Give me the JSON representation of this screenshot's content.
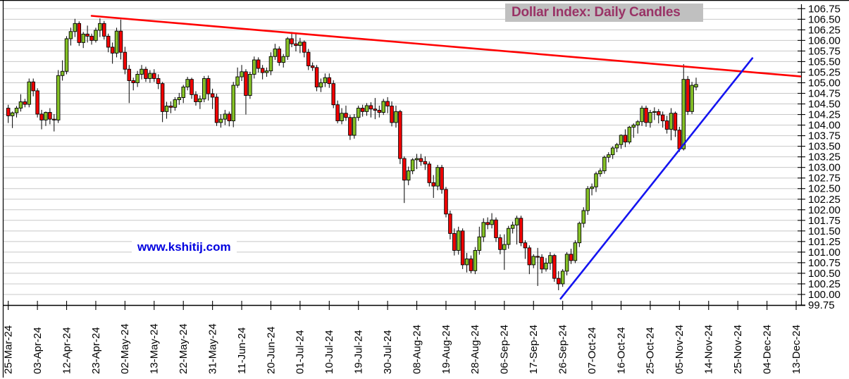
{
  "title": {
    "text": "Dollar Index: Daily Candles",
    "text_color": "#993366",
    "bg_color": "#C0C0C0"
  },
  "watermark": {
    "text": "www.kshitij.com",
    "color": "#0000E0"
  },
  "chart_data": {
    "type": "candlestick",
    "title": "Dollar Index: Daily Candles",
    "grid": true,
    "y_axis": {
      "side": "right",
      "min": 99.75,
      "max": 106.75,
      "step": 0.25
    },
    "y_tick_labels": [
      "106.75",
      "106.50",
      "106.25",
      "106.00",
      "105.75",
      "105.50",
      "105.25",
      "105.00",
      "104.75",
      "104.50",
      "104.25",
      "104.00",
      "103.75",
      "103.50",
      "103.25",
      "103.00",
      "102.75",
      "102.50",
      "102.25",
      "102.00",
      "101.75",
      "101.50",
      "101.25",
      "101.00",
      "100.75",
      "100.50",
      "100.25",
      "100.00",
      "99.75"
    ],
    "x_tick_labels": [
      "25-Mar-24",
      "03-Apr-24",
      "12-Apr-24",
      "23-Apr-24",
      "02-May-24",
      "13-May-24",
      "22-May-24",
      "31-May-24",
      "11-Jun-24",
      "20-Jun-24",
      "01-Jul-24",
      "10-Jul-24",
      "19-Jul-24",
      "30-Jul-24",
      "08-Aug-24",
      "19-Aug-24",
      "28-Aug-24",
      "06-Sep-24",
      "17-Sep-24",
      "26-Sep-24",
      "07-Oct-24",
      "16-Oct-24",
      "25-Oct-24",
      "05-Nov-24",
      "14-Nov-24",
      "25-Nov-24",
      "04-Dec-24",
      "13-Dec-24"
    ],
    "x_ticks_every_n_candles": 7,
    "colors": {
      "up": "#85C226",
      "down": "#F40000",
      "wick": "#000000",
      "grid": "#C8C8C8",
      "axis": "#000000",
      "trend_red": "#FF0000",
      "trend_blue": "#1414F0"
    },
    "columns": [
      "date",
      "open",
      "high",
      "low",
      "close"
    ],
    "candles": [
      [
        "25-Mar-24",
        104.4,
        104.48,
        104.05,
        104.22
      ],
      [
        "26-Mar-24",
        104.22,
        104.32,
        103.93,
        104.29
      ],
      [
        "27-Mar-24",
        104.29,
        104.45,
        104.18,
        104.4
      ],
      [
        "28-Mar-24",
        104.4,
        104.73,
        104.32,
        104.55
      ],
      [
        "29-Mar-24",
        104.55,
        104.62,
        104.42,
        104.49
      ],
      [
        "01-Apr-24",
        104.49,
        105.1,
        104.42,
        105.02
      ],
      [
        "02-Apr-24",
        105.02,
        105.1,
        104.68,
        104.81
      ],
      [
        "03-Apr-24",
        104.81,
        104.87,
        104.18,
        104.26
      ],
      [
        "04-Apr-24",
        104.26,
        104.36,
        103.9,
        104.12
      ],
      [
        "05-Apr-24",
        104.12,
        104.32,
        103.98,
        104.3
      ],
      [
        "08-Apr-24",
        104.3,
        104.4,
        104.02,
        104.14
      ],
      [
        "09-Apr-24",
        104.14,
        104.26,
        103.85,
        104.12
      ],
      [
        "10-Apr-24",
        104.12,
        105.3,
        104.05,
        105.17
      ],
      [
        "11-Apr-24",
        105.17,
        105.53,
        105.05,
        105.27
      ],
      [
        "12-Apr-24",
        105.27,
        106.1,
        105.2,
        106.04
      ],
      [
        "15-Apr-24",
        106.04,
        106.3,
        105.88,
        106.21
      ],
      [
        "16-Apr-24",
        106.21,
        106.51,
        106.08,
        106.4
      ],
      [
        "17-Apr-24",
        106.4,
        106.45,
        105.87,
        105.95
      ],
      [
        "18-Apr-24",
        105.95,
        106.2,
        105.82,
        106.15
      ],
      [
        "19-Apr-24",
        106.15,
        106.35,
        105.95,
        106.1
      ],
      [
        "22-Apr-24",
        106.1,
        106.16,
        105.9,
        106.0
      ],
      [
        "23-Apr-24",
        106.0,
        106.3,
        105.95,
        106.24
      ],
      [
        "24-Apr-24",
        106.24,
        106.52,
        106.08,
        106.4
      ],
      [
        "25-Apr-24",
        106.4,
        106.46,
        106.02,
        106.1
      ],
      [
        "26-Apr-24",
        106.1,
        106.16,
        105.72,
        105.84
      ],
      [
        "29-Apr-24",
        105.84,
        105.95,
        105.45,
        105.7
      ],
      [
        "30-Apr-24",
        105.7,
        106.3,
        105.6,
        106.22
      ],
      [
        "01-May-24",
        106.22,
        106.49,
        105.55,
        105.72
      ],
      [
        "02-May-24",
        105.72,
        105.85,
        105.2,
        105.32
      ],
      [
        "03-May-24",
        105.32,
        105.42,
        104.52,
        105.05
      ],
      [
        "06-May-24",
        105.05,
        105.12,
        104.82,
        105.0
      ],
      [
        "07-May-24",
        105.0,
        105.28,
        104.9,
        105.2
      ],
      [
        "08-May-24",
        105.2,
        105.42,
        105.08,
        105.32
      ],
      [
        "09-May-24",
        105.32,
        105.38,
        105.02,
        105.1
      ],
      [
        "10-May-24",
        105.1,
        105.3,
        105.0,
        105.22
      ],
      [
        "13-May-24",
        105.22,
        105.32,
        105.02,
        105.1
      ],
      [
        "14-May-24",
        105.1,
        105.2,
        104.85,
        104.98
      ],
      [
        "15-May-24",
        104.98,
        105.02,
        104.07,
        104.32
      ],
      [
        "16-May-24",
        104.32,
        104.55,
        104.15,
        104.45
      ],
      [
        "17-May-24",
        104.45,
        104.56,
        104.28,
        104.42
      ],
      [
        "20-May-24",
        104.42,
        104.66,
        104.34,
        104.6
      ],
      [
        "21-May-24",
        104.6,
        104.76,
        104.48,
        104.65
      ],
      [
        "22-May-24",
        104.65,
        104.95,
        104.52,
        104.9
      ],
      [
        "23-May-24",
        104.9,
        105.14,
        104.82,
        105.08
      ],
      [
        "24-May-24",
        105.08,
        105.12,
        104.62,
        104.72
      ],
      [
        "27-May-24",
        104.72,
        104.8,
        104.46,
        104.55
      ],
      [
        "28-May-24",
        104.55,
        104.7,
        104.38,
        104.62
      ],
      [
        "29-May-24",
        104.62,
        105.16,
        104.54,
        105.1
      ],
      [
        "30-May-24",
        105.1,
        105.17,
        104.58,
        104.74
      ],
      [
        "31-May-24",
        104.74,
        104.86,
        104.38,
        104.66
      ],
      [
        "03-Jun-24",
        104.66,
        104.74,
        103.98,
        104.06
      ],
      [
        "04-Jun-24",
        104.06,
        104.26,
        103.94,
        104.14
      ],
      [
        "05-Jun-24",
        104.14,
        104.36,
        104.0,
        104.26
      ],
      [
        "06-Jun-24",
        104.26,
        104.32,
        103.97,
        104.1
      ],
      [
        "07-Jun-24",
        104.1,
        105.02,
        103.95,
        104.94
      ],
      [
        "10-Jun-24",
        104.94,
        105.36,
        104.88,
        105.14
      ],
      [
        "11-Jun-24",
        105.14,
        105.42,
        105.04,
        105.26
      ],
      [
        "12-Jun-24",
        105.26,
        105.32,
        104.25,
        104.7
      ],
      [
        "13-Jun-24",
        104.7,
        105.26,
        104.62,
        105.2
      ],
      [
        "14-Jun-24",
        105.2,
        105.62,
        105.1,
        105.54
      ],
      [
        "17-Jun-24",
        105.54,
        105.6,
        105.24,
        105.34
      ],
      [
        "18-Jun-24",
        105.34,
        105.42,
        105.08,
        105.24
      ],
      [
        "19-Jun-24",
        105.24,
        105.36,
        105.14,
        105.28
      ],
      [
        "20-Jun-24",
        105.28,
        105.72,
        105.18,
        105.62
      ],
      [
        "21-Jun-24",
        105.62,
        105.92,
        105.54,
        105.8
      ],
      [
        "24-Jun-24",
        105.8,
        105.86,
        105.4,
        105.48
      ],
      [
        "25-Jun-24",
        105.48,
        105.68,
        105.36,
        105.62
      ],
      [
        "26-Jun-24",
        105.62,
        106.08,
        105.54,
        106.04
      ],
      [
        "27-Jun-24",
        106.04,
        106.2,
        105.84,
        105.92
      ],
      [
        "28-Jun-24",
        105.92,
        106.18,
        105.74,
        105.88
      ],
      [
        "01-Jul-24",
        105.88,
        106.06,
        105.7,
        105.96
      ],
      [
        "02-Jul-24",
        105.96,
        106.0,
        105.6,
        105.72
      ],
      [
        "03-Jul-24",
        105.72,
        105.8,
        105.3,
        105.4
      ],
      [
        "04-Jul-24",
        105.4,
        105.48,
        105.28,
        105.36
      ],
      [
        "05-Jul-24",
        105.36,
        105.42,
        104.8,
        104.9
      ],
      [
        "08-Jul-24",
        104.9,
        105.1,
        104.78,
        105.0
      ],
      [
        "09-Jul-24",
        105.0,
        105.22,
        104.9,
        105.12
      ],
      [
        "10-Jul-24",
        105.12,
        105.22,
        104.88,
        104.98
      ],
      [
        "11-Jul-24",
        104.98,
        105.06,
        104.4,
        104.48
      ],
      [
        "12-Jul-24",
        104.48,
        104.58,
        104.04,
        104.1
      ],
      [
        "15-Jul-24",
        104.1,
        104.4,
        104.02,
        104.28
      ],
      [
        "16-Jul-24",
        104.28,
        104.46,
        104.1,
        104.18
      ],
      [
        "17-Jul-24",
        104.18,
        104.24,
        103.65,
        103.76
      ],
      [
        "18-Jul-24",
        103.76,
        104.26,
        103.68,
        104.18
      ],
      [
        "19-Jul-24",
        104.18,
        104.46,
        104.1,
        104.4
      ],
      [
        "22-Jul-24",
        104.4,
        104.48,
        104.2,
        104.32
      ],
      [
        "23-Jul-24",
        104.32,
        104.52,
        104.22,
        104.46
      ],
      [
        "24-Jul-24",
        104.46,
        104.54,
        104.18,
        104.38
      ],
      [
        "25-Jul-24",
        104.38,
        104.64,
        104.14,
        104.35
      ],
      [
        "26-Jul-24",
        104.35,
        104.46,
        104.18,
        104.3
      ],
      [
        "29-Jul-24",
        104.3,
        104.62,
        104.24,
        104.56
      ],
      [
        "30-Jul-24",
        104.56,
        104.66,
        104.28,
        104.45
      ],
      [
        "31-Jul-24",
        104.45,
        104.56,
        103.97,
        104.06
      ],
      [
        "01-Aug-24",
        104.06,
        104.46,
        103.94,
        104.32
      ],
      [
        "02-Aug-24",
        104.32,
        104.36,
        103.08,
        103.21
      ],
      [
        "05-Aug-24",
        103.21,
        103.26,
        102.16,
        102.7
      ],
      [
        "06-Aug-24",
        102.7,
        103.02,
        102.58,
        102.92
      ],
      [
        "07-Aug-24",
        102.92,
        103.22,
        102.84,
        103.18
      ],
      [
        "08-Aug-24",
        103.18,
        103.32,
        102.96,
        103.21
      ],
      [
        "09-Aug-24",
        103.21,
        103.32,
        103.04,
        103.14
      ],
      [
        "12-Aug-24",
        103.14,
        103.26,
        102.94,
        103.08
      ],
      [
        "13-Aug-24",
        103.08,
        103.14,
        102.55,
        102.64
      ],
      [
        "14-Aug-24",
        102.64,
        102.82,
        102.28,
        102.56
      ],
      [
        "15-Aug-24",
        102.56,
        103.06,
        102.46,
        103.0
      ],
      [
        "16-Aug-24",
        103.0,
        103.06,
        102.38,
        102.48
      ],
      [
        "19-Aug-24",
        102.48,
        102.54,
        101.82,
        101.9
      ],
      [
        "20-Aug-24",
        101.9,
        101.98,
        101.3,
        101.44
      ],
      [
        "21-Aug-24",
        101.44,
        101.56,
        100.92,
        101.04
      ],
      [
        "22-Aug-24",
        101.04,
        101.6,
        100.94,
        101.5
      ],
      [
        "23-Aug-24",
        101.5,
        101.56,
        100.6,
        100.7
      ],
      [
        "26-Aug-24",
        100.7,
        100.98,
        100.52,
        100.84
      ],
      [
        "27-Aug-24",
        100.84,
        100.92,
        100.5,
        100.56
      ],
      [
        "28-Aug-24",
        100.56,
        101.12,
        100.48,
        101.04
      ],
      [
        "29-Aug-24",
        101.04,
        101.6,
        100.94,
        101.36
      ],
      [
        "30-Aug-24",
        101.36,
        101.8,
        101.24,
        101.7
      ],
      [
        "02-Sep-24",
        101.7,
        101.82,
        101.54,
        101.65
      ],
      [
        "03-Sep-24",
        101.65,
        101.92,
        101.56,
        101.76
      ],
      [
        "04-Sep-24",
        101.76,
        101.82,
        101.24,
        101.34
      ],
      [
        "05-Sep-24",
        101.34,
        101.42,
        100.95,
        101.06
      ],
      [
        "06-Sep-24",
        101.06,
        101.42,
        100.58,
        101.18
      ],
      [
        "09-Sep-24",
        101.18,
        101.62,
        101.08,
        101.56
      ],
      [
        "10-Sep-24",
        101.56,
        101.72,
        101.44,
        101.64
      ],
      [
        "11-Sep-24",
        101.64,
        101.86,
        101.18,
        101.8
      ],
      [
        "12-Sep-24",
        101.8,
        101.86,
        101.14,
        101.22
      ],
      [
        "13-Sep-24",
        101.22,
        101.28,
        100.84,
        101.1
      ],
      [
        "16-Sep-24",
        101.1,
        101.16,
        100.48,
        100.7
      ],
      [
        "17-Sep-24",
        100.7,
        100.95,
        100.62,
        100.9
      ],
      [
        "18-Sep-24",
        100.9,
        101.1,
        100.2,
        100.88
      ],
      [
        "19-Sep-24",
        100.88,
        100.95,
        100.5,
        100.6
      ],
      [
        "20-Sep-24",
        100.6,
        100.86,
        100.54,
        100.74
      ],
      [
        "23-Sep-24",
        100.74,
        101.0,
        100.58,
        100.92
      ],
      [
        "24-Sep-24",
        100.92,
        100.96,
        100.3,
        100.38
      ],
      [
        "25-Sep-24",
        100.38,
        100.55,
        100.1,
        100.25
      ],
      [
        "26-Sep-24",
        100.25,
        100.6,
        100.18,
        100.55
      ],
      [
        "27-Sep-24",
        100.55,
        101.0,
        100.45,
        100.95
      ],
      [
        "30-Sep-24",
        100.95,
        101.08,
        100.72,
        100.8
      ],
      [
        "01-Oct-24",
        100.8,
        101.28,
        100.74,
        101.22
      ],
      [
        "02-Oct-24",
        101.22,
        101.72,
        101.12,
        101.68
      ],
      [
        "03-Oct-24",
        101.68,
        102.06,
        101.58,
        101.98
      ],
      [
        "04-Oct-24",
        101.98,
        102.56,
        101.88,
        102.5
      ],
      [
        "07-Oct-24",
        102.5,
        102.62,
        102.34,
        102.54
      ],
      [
        "08-Oct-24",
        102.54,
        102.9,
        102.42,
        102.85
      ],
      [
        "09-Oct-24",
        102.85,
        102.98,
        102.78,
        102.92
      ],
      [
        "10-Oct-24",
        102.92,
        103.28,
        102.85,
        103.24
      ],
      [
        "11-Oct-24",
        103.24,
        103.36,
        103.12,
        103.3
      ],
      [
        "14-Oct-24",
        103.3,
        103.5,
        103.2,
        103.46
      ],
      [
        "15-Oct-24",
        103.46,
        103.58,
        103.36,
        103.54
      ],
      [
        "16-Oct-24",
        103.54,
        103.78,
        103.44,
        103.76
      ],
      [
        "17-Oct-24",
        103.76,
        103.9,
        103.48,
        103.6
      ],
      [
        "18-Oct-24",
        103.6,
        103.98,
        103.55,
        103.95
      ],
      [
        "21-Oct-24",
        103.95,
        104.04,
        103.7,
        104.0
      ],
      [
        "22-Oct-24",
        104.0,
        104.12,
        103.8,
        104.08
      ],
      [
        "23-Oct-24",
        104.08,
        104.46,
        103.98,
        104.4
      ],
      [
        "24-Oct-24",
        104.4,
        104.46,
        103.96,
        104.06
      ],
      [
        "25-Oct-24",
        104.06,
        104.36,
        103.94,
        104.3
      ],
      [
        "28-Oct-24",
        104.3,
        104.42,
        104.12,
        104.32
      ],
      [
        "29-Oct-24",
        104.32,
        104.38,
        104.04,
        104.24
      ],
      [
        "30-Oct-24",
        104.24,
        104.32,
        103.94,
        104.1
      ],
      [
        "31-Oct-24",
        104.1,
        104.22,
        103.8,
        103.9
      ],
      [
        "01-Nov-24",
        103.9,
        104.4,
        103.64,
        104.28
      ],
      [
        "04-Nov-24",
        104.28,
        104.32,
        103.72,
        103.88
      ],
      [
        "05-Nov-24",
        103.88,
        103.96,
        103.37,
        103.44
      ],
      [
        "06-Nov-24",
        103.44,
        105.44,
        103.4,
        105.08
      ],
      [
        "07-Nov-24",
        105.08,
        105.16,
        104.24,
        104.32
      ],
      [
        "08-Nov-24",
        104.32,
        105.02,
        104.26,
        104.94
      ],
      [
        "11-Nov-24",
        104.9,
        105.12,
        104.82,
        104.96
      ]
    ],
    "trendlines": [
      {
        "name": "descending-resistance",
        "color": "#FF0000",
        "from": {
          "candle_index": 20,
          "value": 106.58
        },
        "to": {
          "candle_index": 190,
          "value": 105.15
        }
      },
      {
        "name": "ascending-support",
        "color": "#1414F0",
        "from": {
          "candle_index": 132.5,
          "value": 99.9
        },
        "to": {
          "candle_index": 178.5,
          "value": 105.58
        }
      }
    ]
  }
}
